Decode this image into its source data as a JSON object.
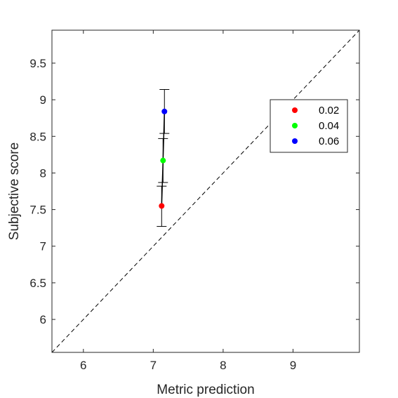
{
  "chart_data": {
    "type": "scatter",
    "xlabel": "Metric prediction",
    "ylabel": "Subjective score",
    "xlim": [
      5.55,
      9.95
    ],
    "ylim": [
      5.55,
      9.95
    ],
    "xticks": [
      6,
      7,
      8,
      9
    ],
    "yticks": [
      6,
      6.5,
      7,
      7.5,
      8,
      8.5,
      9,
      9.5
    ],
    "xtick_labels": [
      "6",
      "7",
      "8",
      "9"
    ],
    "ytick_labels": [
      "6",
      "6.5",
      "7",
      "7.5",
      "8",
      "8.5",
      "9",
      "9.5"
    ],
    "grid": false,
    "diagonal_reference_line": true,
    "legend_position": "right",
    "series": [
      {
        "name": "0.02",
        "color": "#ff0000",
        "x": 7.12,
        "y": 7.55,
        "y_low": 7.27,
        "y_high": 7.82
      },
      {
        "name": "0.04",
        "color": "#00ff00",
        "x": 7.14,
        "y": 8.17,
        "y_low": 7.87,
        "y_high": 8.47
      },
      {
        "name": "0.06",
        "color": "#0000ff",
        "x": 7.16,
        "y": 8.84,
        "y_low": 8.54,
        "y_high": 9.14
      }
    ]
  }
}
